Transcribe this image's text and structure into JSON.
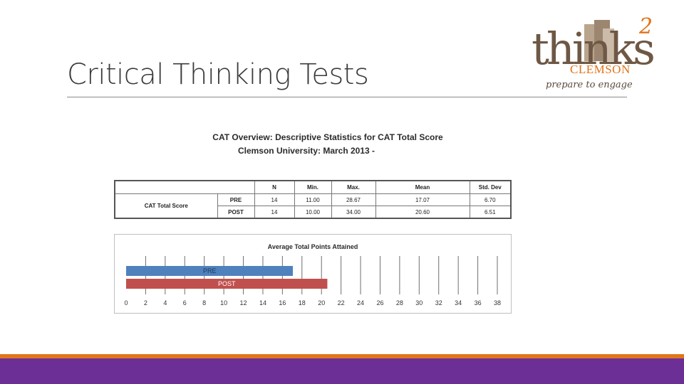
{
  "slide": {
    "title": "Critical Thinking Tests"
  },
  "logo": {
    "word": "thinks",
    "superscript": "2",
    "subtitle": "CLEMSON",
    "tagline": "prepare to engage"
  },
  "stats_table": {
    "heading_line1": "CAT Overview: Descriptive Statistics for CAT Total Score",
    "heading_line2": "Clemson University:  March 2013 -",
    "columns": [
      "N",
      "Min.",
      "Max.",
      "Mean",
      "Std. Dev"
    ],
    "row_label": "CAT Total Score",
    "rows": [
      {
        "group": "PRE",
        "n": "14",
        "min": "11.00",
        "max": "28.67",
        "mean": "17.07",
        "sd": "6.70"
      },
      {
        "group": "POST",
        "n": "14",
        "min": "10.00",
        "max": "34.00",
        "mean": "20.60",
        "sd": "6.51"
      }
    ]
  },
  "chart_data": {
    "type": "bar",
    "orientation": "horizontal",
    "title": "Average Total Points Attained",
    "categories": [
      "PRE",
      "POST"
    ],
    "values": [
      17.07,
      20.6
    ],
    "colors": [
      "#4f81bd",
      "#c0504d"
    ],
    "xlim": [
      0,
      38
    ],
    "x_ticks": [
      0,
      2,
      4,
      6,
      8,
      10,
      12,
      14,
      16,
      18,
      20,
      22,
      24,
      26,
      28,
      30,
      32,
      34,
      36,
      38
    ],
    "grid": "vertical"
  },
  "colors": {
    "accent_orange": "#e0761a",
    "footer_purple": "#6b2f96"
  }
}
